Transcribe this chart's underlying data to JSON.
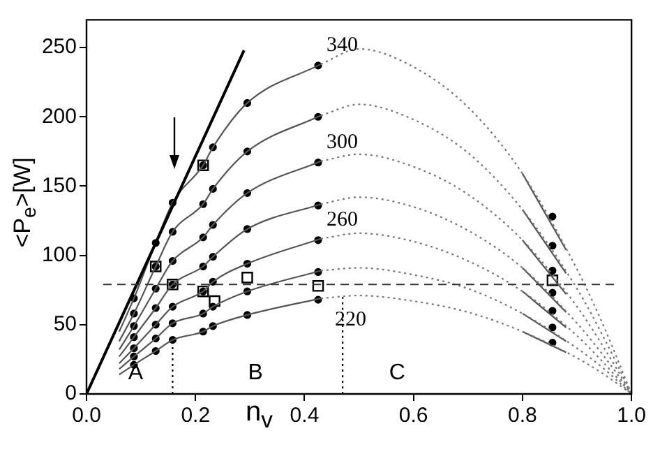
{
  "chart_data": {
    "type": "line",
    "xlabel": "n$_{v}$",
    "ylabel": "<P$_{e}$>[W]",
    "xlim": [
      0,
      1
    ],
    "ylim": [
      0,
      270
    ],
    "xticks": [
      {
        "value": 0,
        "label": "0.0"
      },
      {
        "value": 0.2,
        "label": "0.2"
      },
      {
        "value": 0.4,
        "label": "0.4"
      },
      {
        "value": 0.6,
        "label": "0.6"
      },
      {
        "value": 0.8,
        "label": "0.8"
      },
      {
        "value": 1,
        "label": "1.0"
      }
    ],
    "yticks": [
      0,
      50,
      100,
      150,
      200,
      250
    ],
    "grid": false,
    "legend": false,
    "annotations": [
      "A",
      "B",
      "C"
    ],
    "ref_lines": [
      {
        "axis": "y",
        "value": 79,
        "color": "#333333",
        "line_style": "dashed"
      }
    ],
    "series": [
      {
        "color": "#000000",
        "line_style": "solid",
        "marker": "none",
        "x": [
          0,
          0.289
        ],
        "values": [
          0,
          248
        ]
      },
      {
        "color": "#555555",
        "line_style": "solid",
        "marker": "none",
        "x": [
          0.06,
          0.087,
          0.127,
          0.158,
          0.214,
          0.232,
          0.295,
          0.43
        ],
        "values": [
          45,
          69,
          109,
          138,
          165,
          178,
          210,
          238
        ]
      },
      {
        "color": "#555555",
        "line_style": "solid",
        "marker": "none",
        "x": [
          0.06,
          0.087,
          0.127,
          0.158,
          0.214,
          0.232,
          0.295,
          0.43
        ],
        "values": [
          38,
          58,
          92,
          117,
          137,
          148,
          175,
          201
        ]
      },
      {
        "color": "#555555",
        "line_style": "solid",
        "marker": "none",
        "x": [
          0.06,
          0.087,
          0.127,
          0.158,
          0.214,
          0.232,
          0.295,
          0.43
        ],
        "values": [
          32,
          49,
          76,
          96,
          113,
          122,
          145,
          168
        ]
      },
      {
        "color": "#555555",
        "line_style": "solid",
        "marker": "none",
        "x": [
          0.06,
          0.087,
          0.127,
          0.158,
          0.214,
          0.232,
          0.295,
          0.43
        ],
        "values": [
          27,
          41,
          62,
          79,
          92,
          99,
          119,
          137
        ]
      },
      {
        "color": "#555555",
        "line_style": "solid",
        "marker": "none",
        "x": [
          0.06,
          0.087,
          0.127,
          0.158,
          0.214,
          0.232,
          0.295,
          0.43
        ],
        "values": [
          22,
          33,
          50,
          63,
          74,
          81,
          94,
          112
        ]
      },
      {
        "color": "#555555",
        "line_style": "solid",
        "marker": "none",
        "x": [
          0.06,
          0.087,
          0.127,
          0.158,
          0.214,
          0.232,
          0.295,
          0.43
        ],
        "values": [
          18,
          27,
          40,
          51,
          58,
          63,
          74,
          89
        ]
      },
      {
        "color": "#555555",
        "line_style": "solid",
        "marker": "none",
        "x": [
          0.06,
          0.087,
          0.127,
          0.158,
          0.214,
          0.232,
          0.295,
          0.43
        ],
        "values": [
          14,
          21,
          31,
          39,
          45,
          49,
          57,
          69
        ]
      },
      {
        "name": "340",
        "color": "#777777",
        "line_style": "dotted",
        "marker": "none",
        "x": [
          0.43,
          0.5,
          0.6,
          0.7,
          0.8,
          0.9,
          0.95,
          1
        ],
        "values": [
          238,
          249,
          236,
          207,
          159,
          90,
          48,
          0
        ]
      },
      {
        "color": "#777777",
        "line_style": "dotted",
        "marker": "none",
        "x": [
          0.43,
          0.5,
          0.6,
          0.7,
          0.8,
          0.9,
          0.95,
          1
        ],
        "values": [
          201,
          209,
          198,
          174,
          133,
          76,
          40,
          0
        ]
      },
      {
        "name": "300",
        "color": "#777777",
        "line_style": "dotted",
        "marker": "none",
        "x": [
          0.43,
          0.5,
          0.6,
          0.7,
          0.8,
          0.9,
          0.95,
          1
        ],
        "values": [
          168,
          173,
          164,
          144,
          111,
          63,
          33,
          0
        ]
      },
      {
        "color": "#777777",
        "line_style": "dotted",
        "marker": "none",
        "x": [
          0.43,
          0.5,
          0.6,
          0.7,
          0.8,
          0.9,
          0.95,
          1
        ],
        "values": [
          137,
          142,
          135,
          118,
          91,
          51,
          27,
          0
        ]
      },
      {
        "name": "260",
        "color": "#777777",
        "line_style": "dotted",
        "marker": "none",
        "x": [
          0.43,
          0.5,
          0.6,
          0.7,
          0.8,
          0.9,
          0.95,
          1
        ],
        "values": [
          112,
          116,
          110,
          96,
          74,
          42,
          22,
          0
        ]
      },
      {
        "color": "#777777",
        "line_style": "dotted",
        "marker": "none",
        "x": [
          0.43,
          0.5,
          0.6,
          0.7,
          0.8,
          0.9,
          0.95,
          1
        ],
        "values": [
          89,
          91,
          86,
          76,
          58,
          33,
          18,
          0
        ]
      },
      {
        "name": "220",
        "color": "#777777",
        "line_style": "dotted",
        "marker": "none",
        "x": [
          0.43,
          0.5,
          0.6,
          0.7,
          0.8,
          0.9,
          0.95,
          1
        ],
        "values": [
          69,
          71,
          67,
          59,
          45,
          26,
          14,
          0
        ]
      },
      {
        "color": "#555555",
        "line_style": "solid",
        "marker": "none",
        "x": [
          0.8,
          0.88
        ],
        "values": [
          159,
          104
        ]
      },
      {
        "color": "#555555",
        "line_style": "solid",
        "marker": "none",
        "x": [
          0.8,
          0.88
        ],
        "values": [
          133,
          87
        ]
      },
      {
        "color": "#555555",
        "line_style": "solid",
        "marker": "none",
        "x": [
          0.8,
          0.88
        ],
        "values": [
          111,
          72
        ]
      },
      {
        "color": "#555555",
        "line_style": "solid",
        "marker": "none",
        "x": [
          0.8,
          0.88
        ],
        "values": [
          91,
          59
        ]
      },
      {
        "color": "#555555",
        "line_style": "solid",
        "marker": "none",
        "x": [
          0.8,
          0.88
        ],
        "values": [
          74,
          48
        ]
      },
      {
        "color": "#555555",
        "line_style": "solid",
        "marker": "none",
        "x": [
          0.8,
          0.88
        ],
        "values": [
          58,
          38
        ]
      },
      {
        "color": "#555555",
        "line_style": "solid",
        "marker": "none",
        "x": [
          0.8,
          0.88
        ],
        "values": [
          45,
          30
        ]
      },
      {
        "color": "#000000",
        "line_style": "dotted",
        "marker": "none",
        "x": [
          0.158,
          0.158
        ],
        "values": [
          0,
          39
        ]
      },
      {
        "color": "#000000",
        "line_style": "dotted",
        "marker": "none",
        "x": [
          0.47,
          0.47
        ],
        "values": [
          0,
          70
        ]
      },
      {
        "type": "scatter",
        "color": "#000000",
        "marker": "circle",
        "x": [
          0.087,
          0.127,
          0.158,
          0.214,
          0.232,
          0.295,
          0.425,
          0.855
        ],
        "values": [
          69,
          109,
          138,
          165,
          178,
          210,
          237,
          128
        ]
      },
      {
        "type": "scatter",
        "color": "#000000",
        "marker": "circle",
        "x": [
          0.087,
          0.127,
          0.158,
          0.214,
          0.232,
          0.295,
          0.425,
          0.855
        ],
        "values": [
          58,
          92,
          117,
          137,
          148,
          175,
          200,
          107
        ]
      },
      {
        "type": "scatter",
        "color": "#000000",
        "marker": "circle",
        "x": [
          0.087,
          0.127,
          0.158,
          0.214,
          0.232,
          0.295,
          0.425,
          0.855
        ],
        "values": [
          49,
          76,
          96,
          113,
          122,
          145,
          167,
          89
        ]
      },
      {
        "type": "scatter",
        "color": "#000000",
        "marker": "circle",
        "x": [
          0.087,
          0.127,
          0.158,
          0.214,
          0.232,
          0.295,
          0.425,
          0.855
        ],
        "values": [
          41,
          62,
          79,
          92,
          99,
          119,
          136,
          73
        ]
      },
      {
        "type": "scatter",
        "color": "#000000",
        "marker": "circle",
        "x": [
          0.087,
          0.127,
          0.158,
          0.214,
          0.232,
          0.295,
          0.425,
          0.855
        ],
        "values": [
          33,
          50,
          63,
          74,
          81,
          94,
          111,
          60
        ]
      },
      {
        "type": "scatter",
        "color": "#000000",
        "marker": "circle",
        "x": [
          0.087,
          0.127,
          0.158,
          0.214,
          0.232,
          0.295,
          0.425,
          0.855
        ],
        "values": [
          27,
          40,
          51,
          58,
          63,
          74,
          88,
          48
        ]
      },
      {
        "type": "scatter",
        "color": "#000000",
        "marker": "circle",
        "x": [
          0.087,
          0.127,
          0.158,
          0.214,
          0.232,
          0.295,
          0.425,
          0.855
        ],
        "values": [
          21,
          31,
          39,
          45,
          49,
          57,
          68,
          37
        ]
      },
      {
        "type": "scatter",
        "color": "#000000",
        "marker": "square",
        "x": [
          0.127,
          0.158,
          0.214,
          0.214,
          0.235,
          0.295,
          0.425,
          0.855
        ],
        "values": [
          92,
          79,
          165,
          74,
          67,
          84,
          78,
          82
        ]
      }
    ]
  }
}
